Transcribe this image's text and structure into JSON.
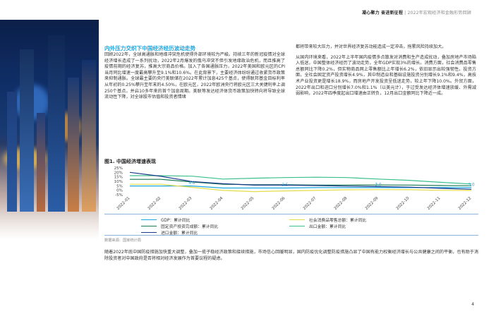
{
  "header": {
    "brand": "凝心聚力 奋进新征程",
    "separator": "|",
    "report_title": "2022年宏观经济和金融形势回顾"
  },
  "section": {
    "title": "内外压力交织下中国经济经历波动走势",
    "left_text": "回顾2022年，全球高通胀和地缘冲突危机使得外部环境较为严峻。持续三年的新冠疫情对全球经济增长造成了一系列扰动，2022年2月爆发的俄乌冲突不但引发地缘政治危机，而且推高了疫情前期的经济复苏，推高大宗商品价格。加入了各国通胀压力，2022年美国和欧元区的CPI当月同比增速一度最高攀升至9.1%和10.6%。在此背景下，主要经济体纷纷通过收紧货币政策来抑制通胀。全球最主要的央行美联储在2022年累计加息425个基点，使得联邦基金目标利率从年初的0.25%攀升至年末的4.50%，在欧元区，2022年欧洲央行将欧元区三大关键利率上调250个基点，并启10多年来的首个加息周期。美联等发达经济体货币政策加快转向将导致全球流动性下降，对全球股市估值和投资者情绪",
    "right_text_1": "都将带来较大压力，并对世界经济复苏动能造成一定冲击，拖累风险持续加大。",
    "right_text_2": "从国内环境来看，2022年上半年国内疫情多点散发对消费和生产造成扰动，叠加房地产市场陷入低迷，中国整体经济经历了波动走势，全年GDP实现3%的增长。消费方面，社会消费品零售总额同比下降0.2%，但实物商品网上零售额比上年增长6.2%，依旧显示出较强韧性。投资方面，全社会固定资产投资增长4.9%，其中制造业和基础设施投资分别增长9.1%和9.4%，高技术产业投资更是增长18.9%，而房地产开发投资呈低迷走势，较上年下降10.0%。外贸方面，2022年出口和进口分别增长7.0%和1.1%（以美元计），于过受发达经济体增速放缓、外需减弱影响，2022年四季度起出口增速由正转负，12月出口金额同比下降近一成。"
  },
  "figure": {
    "title": "图1. 中国经济增速表现",
    "source": "数据来源：国家统计局"
  },
  "chart_data": {
    "type": "line",
    "x": [
      "2022-01",
      "2022-02",
      "2022-03",
      "2022-04",
      "2022-05",
      "2022-06",
      "2022-07",
      "2022-08",
      "2022-09",
      "2022-10",
      "2022-11",
      "2022-12"
    ],
    "ylim": [
      -5,
      25
    ],
    "yticks": [
      "25%",
      "20%",
      "15%",
      "10%",
      "5%",
      "0%",
      "-5%"
    ],
    "ytick_values": [
      25,
      20,
      15,
      10,
      5,
      0,
      -5
    ],
    "grid": false,
    "legend_position": "bottom",
    "colors": {
      "gdp": "#1ca7e0",
      "retail": "#e6dc4a",
      "fai": "#1a7a52",
      "export": "#3cbf8c",
      "import": "#1a3a8a"
    },
    "series": [
      {
        "key": "gdp",
        "name": "GDP：累计同比",
        "values": [
          4.8,
          4.8,
          4.8,
          2.5,
          2.5,
          2.5,
          3.0,
          3.0,
          3.0,
          3.0,
          3.0,
          3.0
        ]
      },
      {
        "key": "retail",
        "name": "社会消费品零售总额：累计同比",
        "values": [
          6.7,
          6.7,
          3.3,
          -0.2,
          -1.5,
          -0.7,
          -0.2,
          0.5,
          0.7,
          0.6,
          -0.1,
          -0.2
        ]
      },
      {
        "key": "fai",
        "name": "固定资产投资完成额：累计同比",
        "values": [
          12.2,
          12.2,
          9.3,
          6.8,
          6.2,
          6.1,
          5.7,
          5.8,
          5.9,
          5.8,
          5.3,
          5.1
        ]
      },
      {
        "key": "export",
        "name": "出口金额：累计同比",
        "values": [
          16.3,
          16.3,
          15.8,
          12.5,
          13.5,
          14.2,
          14.6,
          14.2,
          12.5,
          11.1,
          8.9,
          7.0
        ]
      },
      {
        "key": "import",
        "name": "进口金额：累计同比",
        "values": [
          20.0,
          15.6,
          9.8,
          7.3,
          5.7,
          5.7,
          5.3,
          4.6,
          4.1,
          3.5,
          2.2,
          1.1
        ]
      }
    ],
    "annotations": [
      {
        "x": "2022-03",
        "series": "gdp",
        "label": "4.8"
      },
      {
        "x": "2022-06",
        "series": "gdp",
        "label": "2.5"
      },
      {
        "x": "2022-09",
        "series": "gdp",
        "label": "3.0"
      },
      {
        "x": "2022-12",
        "series": "gdp",
        "label": "3.0"
      }
    ]
  },
  "bottom": {
    "text": "随着2022年底中国防疫措施加快重大调整，叠加一揽子稳经济政策和接续措施，市场信心回暖明显，国内防疫优化调整防疫措施凸显了中国有能力权衡经济增长与公共健康之间的平衡，也有助于消除投资者对中国政府是否将相对经济发展作为首要议程的疑虑。"
  },
  "page": {
    "number": "4"
  }
}
